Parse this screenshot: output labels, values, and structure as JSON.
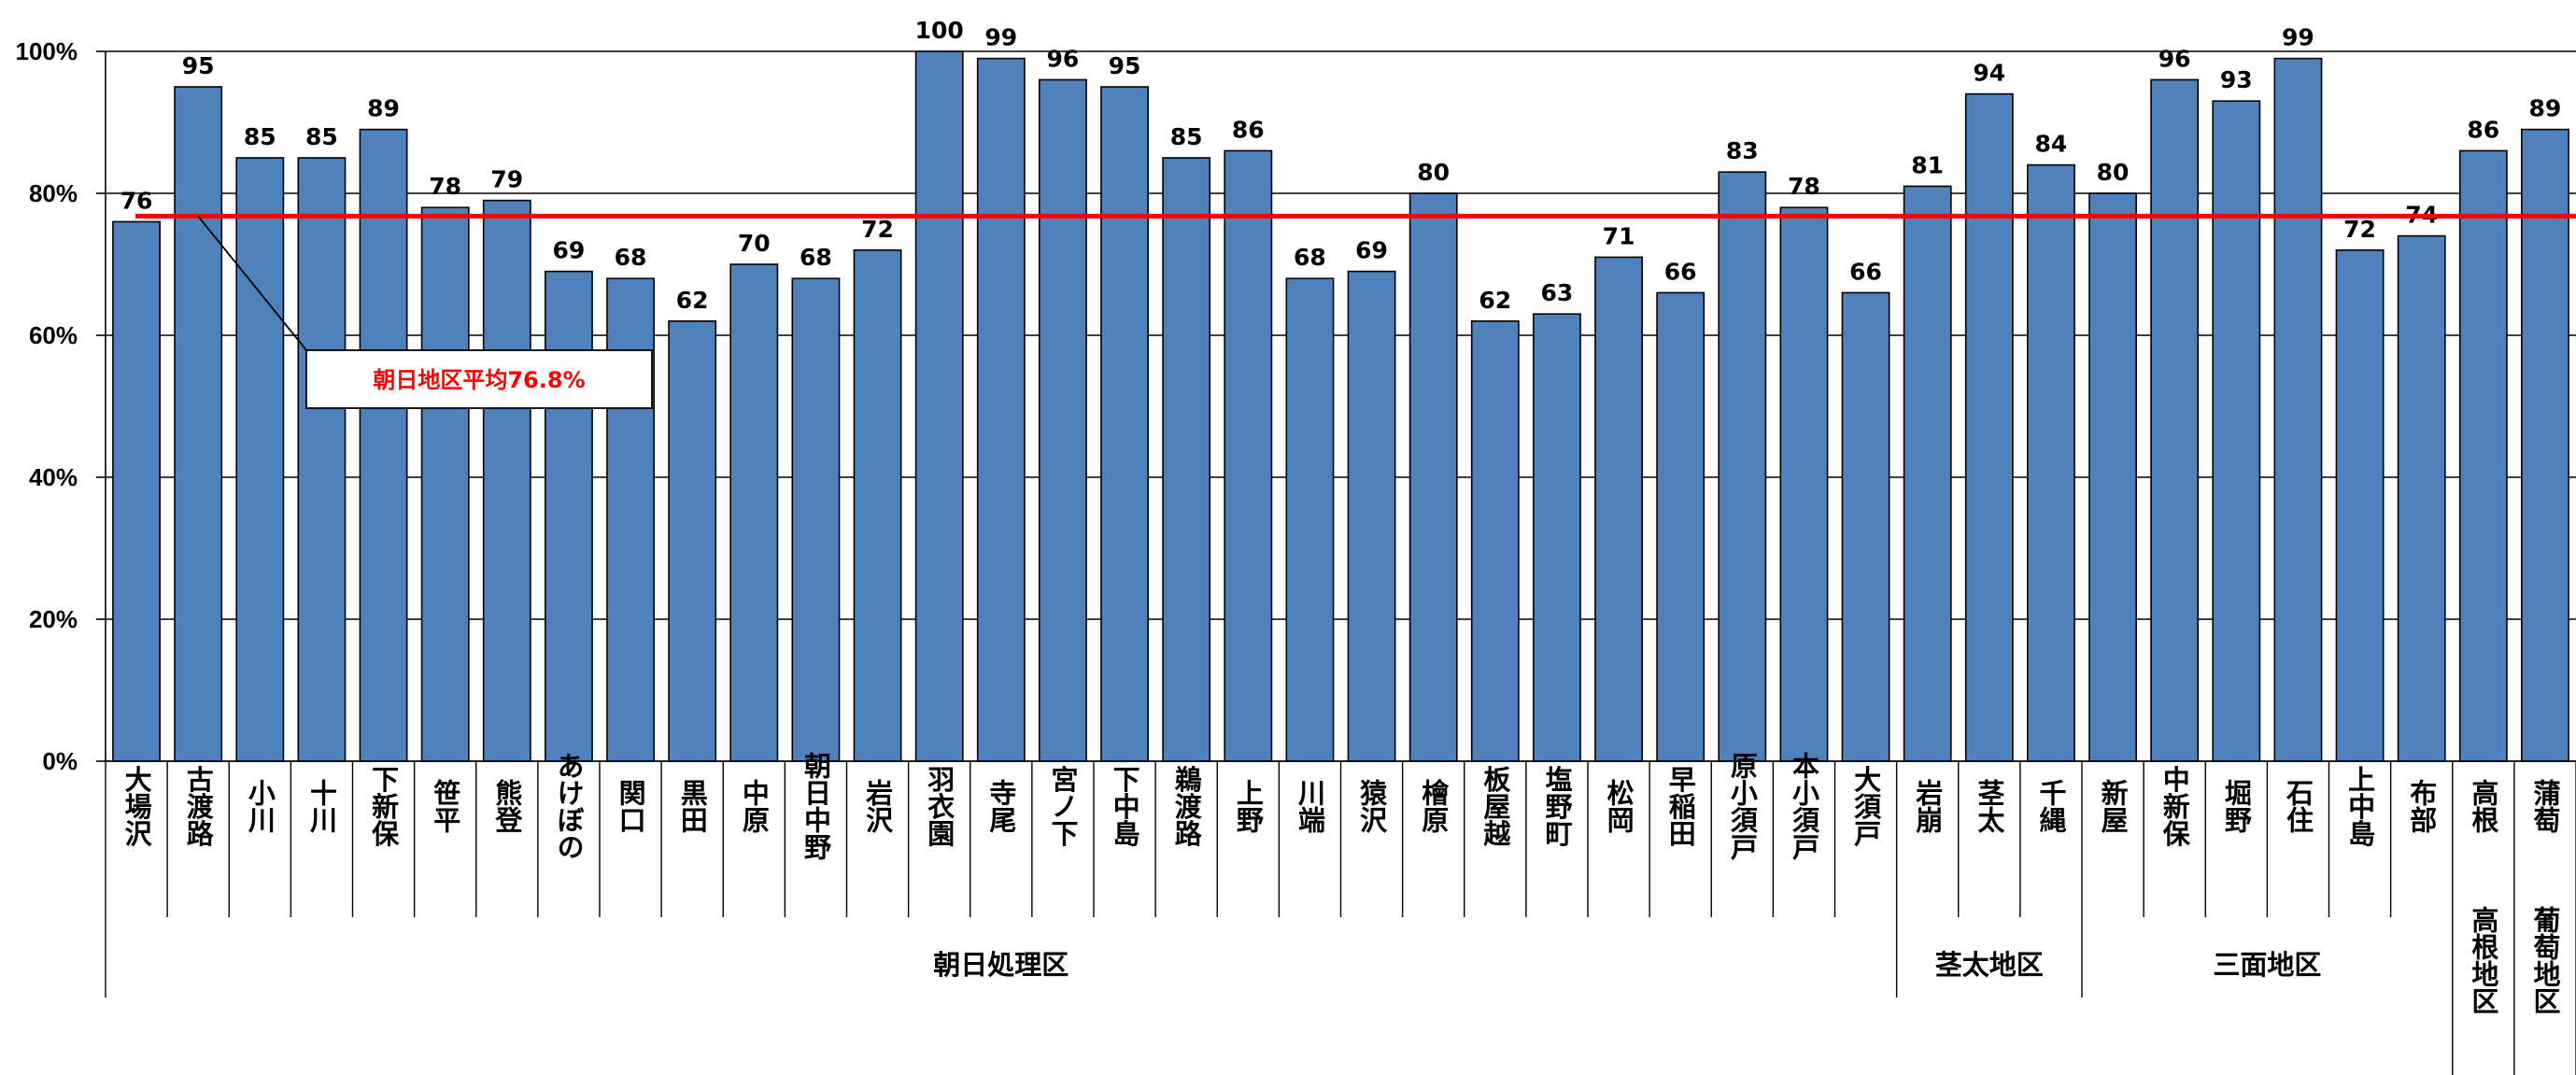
{
  "chart_data": {
    "type": "bar",
    "categories": [
      "大場沢",
      "古渡路",
      "小川",
      "十川",
      "下新保",
      "笹平",
      "熊登",
      "あけぼの",
      "関口",
      "黒田",
      "中原",
      "朝日中野",
      "岩沢",
      "羽衣園",
      "寺尾",
      "宮ノ下",
      "下中島",
      "鵜渡路",
      "上野",
      "川端",
      "猿沢",
      "檜原",
      "板屋越",
      "塩野町",
      "松岡",
      "早稲田",
      "原小須戸",
      "本小須戸",
      "大須戸",
      "岩崩",
      "茎太",
      "千縄",
      "新屋",
      "中新保",
      "堀野",
      "石住",
      "上中島",
      "布部",
      "高根",
      "蒲萄"
    ],
    "values": [
      76,
      95,
      85,
      85,
      89,
      78,
      79,
      69,
      68,
      62,
      70,
      68,
      72,
      100,
      99,
      96,
      95,
      85,
      86,
      68,
      69,
      80,
      62,
      63,
      71,
      66,
      83,
      78,
      66,
      81,
      94,
      84,
      80,
      96,
      93,
      99,
      72,
      74,
      86,
      89
    ],
    "data_labels": [
      "76",
      "95",
      "85",
      "85",
      "89",
      "78",
      "79",
      "69",
      "68",
      "62",
      "70",
      "68",
      "72",
      "100",
      "99",
      "96",
      "95",
      "85",
      "86",
      "68",
      "69",
      "80",
      "62",
      "63",
      "71",
      "66",
      "83",
      "78",
      "66",
      "81",
      "94",
      "84",
      "80",
      "96",
      "93",
      "99",
      "72",
      "74",
      "86",
      "89"
    ],
    "groups": [
      {
        "label": "朝日処理区",
        "start": 0,
        "end": 28
      },
      {
        "label": "茎太地区",
        "start": 29,
        "end": 31
      },
      {
        "label": "三面地区",
        "start": 32,
        "end": 37
      },
      {
        "label": "高根地区",
        "start": 38,
        "end": 38
      },
      {
        "label": "葡萄地区",
        "start": 39,
        "end": 39
      }
    ],
    "ylim": [
      0,
      100
    ],
    "yticks": [
      "0%",
      "20%",
      "40%",
      "60%",
      "80%",
      "100%"
    ],
    "ytick_values": [
      0,
      20,
      40,
      60,
      80,
      100
    ],
    "average": {
      "value": 76.8,
      "label": "朝日地区平均76.8%",
      "color": "#ff0000"
    },
    "bar_color": "#4f81bd",
    "grid": true,
    "title": "",
    "xlabel": "",
    "ylabel": ""
  }
}
